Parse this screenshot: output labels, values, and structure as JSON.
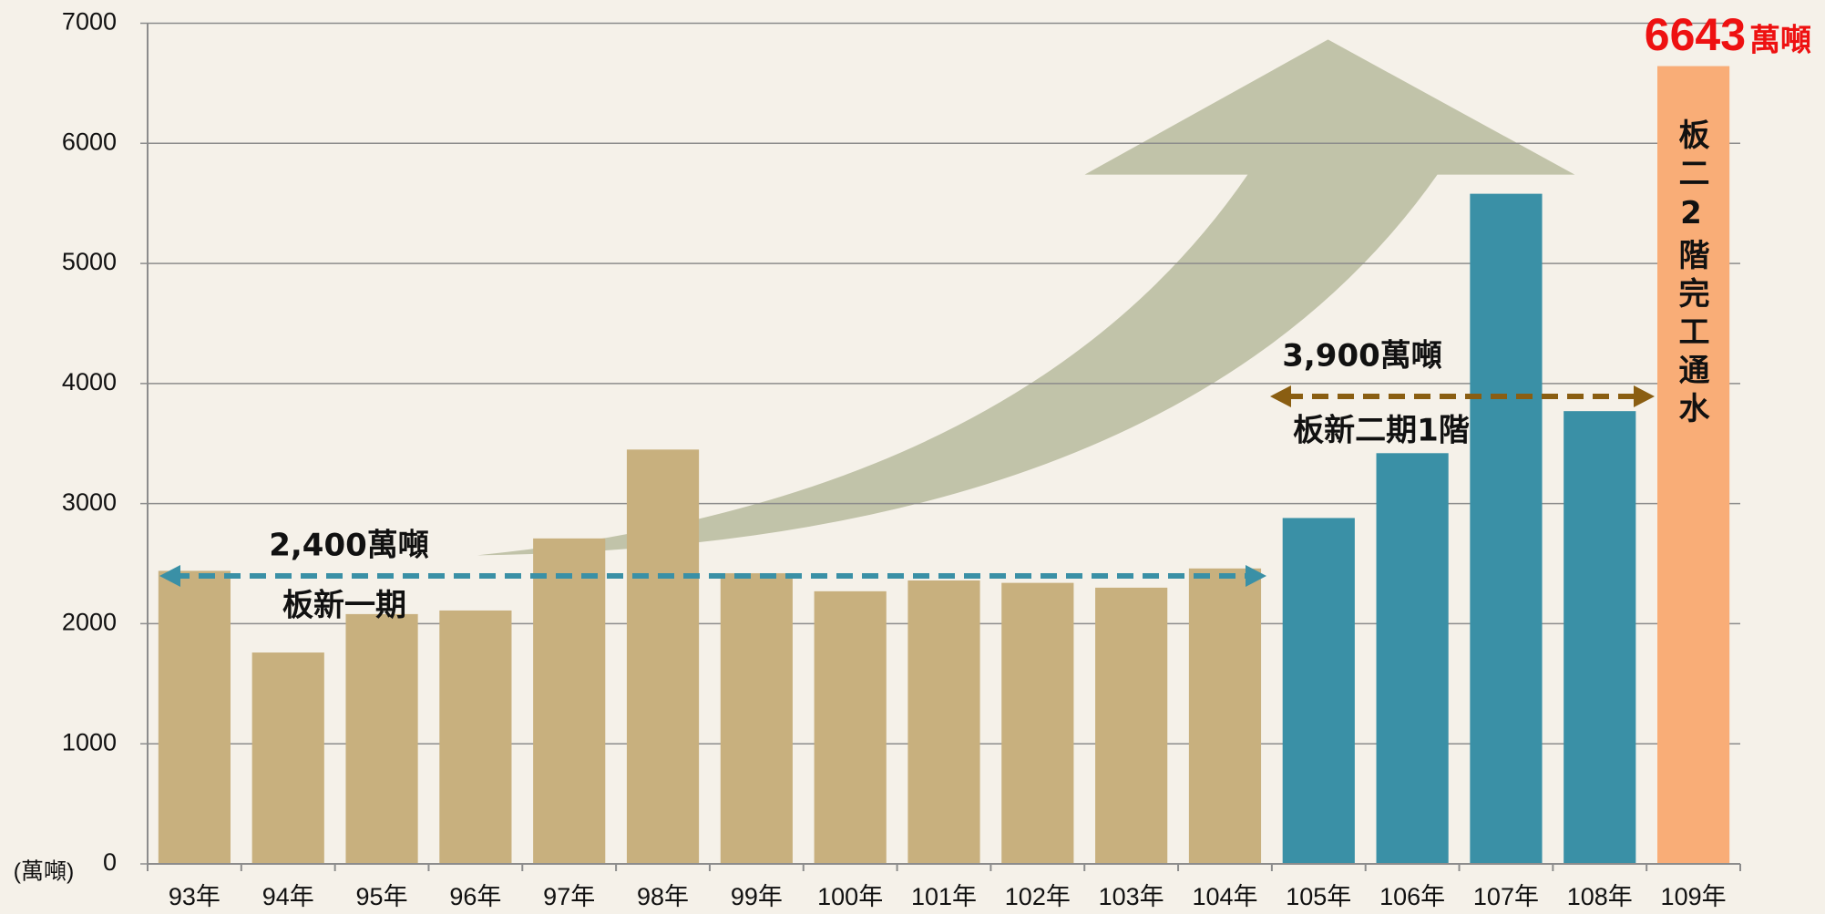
{
  "chart_data": {
    "type": "bar",
    "categories": [
      "93年",
      "94年",
      "95年",
      "96年",
      "97年",
      "98年",
      "99年",
      "100年",
      "101年",
      "102年",
      "103年",
      "104年",
      "105年",
      "106年",
      "107年",
      "108年",
      "109年"
    ],
    "values": [
      2440,
      1760,
      2080,
      2110,
      2710,
      3450,
      2420,
      2270,
      2360,
      2340,
      2300,
      2460,
      2880,
      3420,
      5580,
      3770,
      6643
    ],
    "colors": [
      "#c8b07e",
      "#c8b07e",
      "#c8b07e",
      "#c8b07e",
      "#c8b07e",
      "#c8b07e",
      "#c8b07e",
      "#c8b07e",
      "#c8b07e",
      "#c8b07e",
      "#c8b07e",
      "#c8b07e",
      "#3a90a6",
      "#3a90a6",
      "#3a90a6",
      "#3a90a6",
      "#f9ad77"
    ],
    "ylim": [
      0,
      7000
    ],
    "yticks": [
      0,
      1000,
      2000,
      3000,
      4000,
      5000,
      6000,
      7000
    ],
    "grid": true,
    "y_unit": "(萬噸)",
    "value_label_unit": "萬噸",
    "annotations": {
      "phase1_amount": "2,400萬噸",
      "phase1_name": "板新一期",
      "phase2_amount": "3,900萬噸",
      "phase2_name": "板新二期1階",
      "phase2b_note": "板二2階完工通水"
    }
  }
}
